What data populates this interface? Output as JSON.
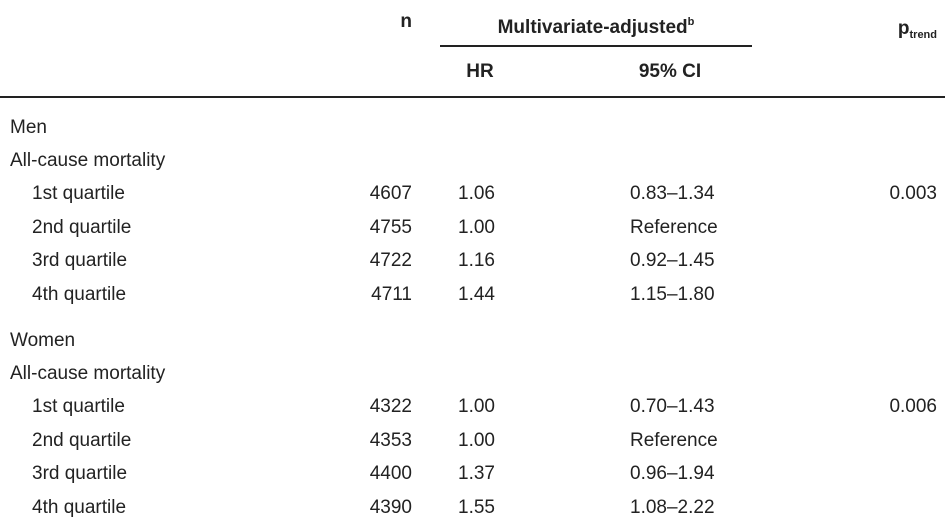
{
  "header": {
    "n": "n",
    "adjusted": {
      "label": "Multivariate-adjusted",
      "sup": "b"
    },
    "p_trend": {
      "label": "p",
      "sub": "trend"
    },
    "hr": "HR",
    "ci": "95% CI"
  },
  "sections": [
    {
      "group": "Men",
      "outcome": "All-cause mortality",
      "p_trend": "0.003",
      "rows": [
        {
          "label": "1st quartile",
          "n": "4607",
          "hr": "1.06",
          "ci": "0.83–1.34"
        },
        {
          "label": "2nd quartile",
          "n": "4755",
          "hr": "1.00",
          "ci": "Reference"
        },
        {
          "label": "3rd quartile",
          "n": "4722",
          "hr": "1.16",
          "ci": "0.92–1.45"
        },
        {
          "label": "4th quartile",
          "n": "4711",
          "hr": "1.44",
          "ci": "1.15–1.80"
        }
      ]
    },
    {
      "group": "Women",
      "outcome": "All-cause mortality",
      "p_trend": "0.006",
      "rows": [
        {
          "label": "1st quartile",
          "n": "4322",
          "hr": "1.00",
          "ci": "0.70–1.43"
        },
        {
          "label": "2nd quartile",
          "n": "4353",
          "hr": "1.00",
          "ci": "Reference"
        },
        {
          "label": "3rd quartile",
          "n": "4400",
          "hr": "1.37",
          "ci": "0.96–1.94"
        },
        {
          "label": "4th quartile",
          "n": "4390",
          "hr": "1.55",
          "ci": "1.08–2.22"
        }
      ]
    }
  ]
}
